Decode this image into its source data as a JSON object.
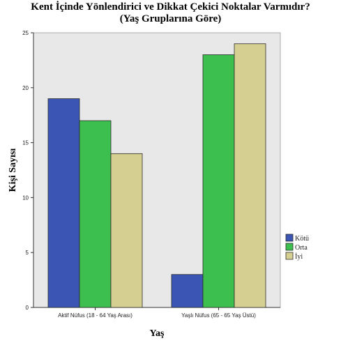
{
  "chart_data": {
    "type": "bar",
    "title": "Kent İçinde Yönlendirici ve Dikkat Çekici Noktalar Varmıdır?",
    "subtitle": "(Yaş Gruplarına Göre)",
    "xlabel": "Yaş",
    "ylabel": "Kişi Sayısı",
    "categories": [
      "Aktif Nüfus (18 - 64 Yaş Arası)",
      "Yaşlı Nüfus (65 - 65 Yaş Üstü)"
    ],
    "series": [
      {
        "name": "Kötü",
        "values": [
          19,
          3
        ],
        "color": "#3a55b3"
      },
      {
        "name": "Orta",
        "values": [
          17,
          23
        ],
        "color": "#3cbf4e"
      },
      {
        "name": "İyi",
        "values": [
          14,
          24
        ],
        "color": "#d6cf92"
      }
    ],
    "ylim": [
      0,
      25
    ],
    "yticks": [
      0,
      5,
      10,
      15,
      20,
      25
    ],
    "grid": false,
    "legend_position": "right",
    "plot_background": "#e8e8e8"
  }
}
